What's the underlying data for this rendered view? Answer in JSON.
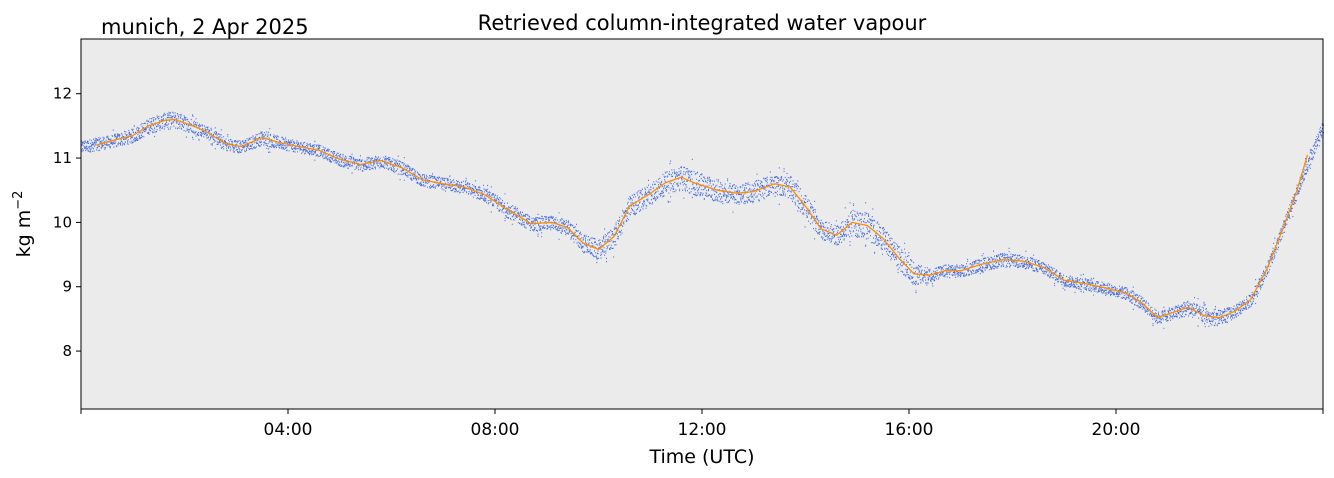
{
  "figure": {
    "location_date": "munich, 2 Apr 2025"
  },
  "chart_data": {
    "type": "scatter",
    "title": "Retrieved column-integrated water vapour",
    "xlabel": "Time (UTC)",
    "ylabel": "kg m",
    "ylabel_superscript": "−2",
    "xlim_hours": [
      0,
      24
    ],
    "ylim": [
      7.1,
      12.85
    ],
    "x_ticks": [
      "04:00",
      "08:00",
      "12:00",
      "16:00",
      "20:00"
    ],
    "x_tick_hours": [
      4,
      8,
      12,
      16,
      20
    ],
    "y_ticks": [
      8,
      9,
      10,
      11,
      12
    ],
    "grid": false,
    "background_color": "#ebebeb",
    "series": [
      {
        "style": "dense-scatter",
        "color": "#4169e1",
        "x_hours": [
          0.0,
          0.5,
          1.0,
          1.3,
          1.6,
          1.8,
          2.1,
          2.4,
          2.8,
          3.1,
          3.5,
          3.8,
          4.2,
          4.6,
          5.0,
          5.4,
          5.8,
          6.2,
          6.6,
          7.0,
          7.4,
          7.8,
          8.2,
          8.7,
          9.1,
          9.4,
          9.7,
          10.0,
          10.3,
          10.6,
          11.0,
          11.3,
          11.6,
          11.9,
          12.3,
          12.7,
          13.0,
          13.4,
          13.7,
          14.0,
          14.3,
          14.6,
          14.9,
          15.2,
          15.5,
          15.8,
          16.1,
          16.4,
          16.7,
          17.0,
          17.4,
          17.8,
          18.2,
          18.6,
          19.0,
          19.4,
          19.8,
          20.2,
          20.5,
          20.8,
          21.1,
          21.4,
          21.7,
          22.0,
          22.3,
          22.6,
          22.9,
          23.2,
          23.5,
          23.8,
          24.0
        ],
        "y_values": [
          11.18,
          11.25,
          11.35,
          11.5,
          11.58,
          11.6,
          11.52,
          11.42,
          11.22,
          11.18,
          11.32,
          11.25,
          11.18,
          11.12,
          10.98,
          10.9,
          10.96,
          10.85,
          10.66,
          10.6,
          10.55,
          10.43,
          10.22,
          9.98,
          10.0,
          9.92,
          9.68,
          9.58,
          9.78,
          10.25,
          10.45,
          10.62,
          10.7,
          10.6,
          10.5,
          10.45,
          10.48,
          10.6,
          10.55,
          10.25,
          9.9,
          9.8,
          10.0,
          9.95,
          9.75,
          9.45,
          9.2,
          9.18,
          9.25,
          9.25,
          9.35,
          9.42,
          9.4,
          9.3,
          9.1,
          9.05,
          8.98,
          8.9,
          8.75,
          8.52,
          8.6,
          8.68,
          8.55,
          8.52,
          8.62,
          8.8,
          9.25,
          9.85,
          10.5,
          11.1,
          11.5
        ],
        "spread": [
          0.2,
          0.2,
          0.22,
          0.25,
          0.25,
          0.28,
          0.22,
          0.2,
          0.2,
          0.2,
          0.22,
          0.2,
          0.18,
          0.18,
          0.2,
          0.2,
          0.2,
          0.2,
          0.2,
          0.2,
          0.2,
          0.2,
          0.25,
          0.22,
          0.22,
          0.25,
          0.3,
          0.3,
          0.35,
          0.35,
          0.35,
          0.35,
          0.38,
          0.38,
          0.35,
          0.3,
          0.35,
          0.3,
          0.35,
          0.38,
          0.3,
          0.3,
          0.4,
          0.45,
          0.35,
          0.38,
          0.35,
          0.22,
          0.2,
          0.2,
          0.2,
          0.22,
          0.2,
          0.2,
          0.18,
          0.18,
          0.18,
          0.2,
          0.2,
          0.2,
          0.2,
          0.25,
          0.25,
          0.25,
          0.2,
          0.2,
          0.2,
          0.22,
          0.22,
          0.2,
          0.2
        ]
      },
      {
        "style": "line",
        "color": "#ff8c00",
        "x_hours": [
          0.3,
          0.5,
          1.0,
          1.3,
          1.6,
          1.8,
          2.1,
          2.4,
          2.8,
          3.1,
          3.5,
          3.8,
          4.2,
          4.6,
          5.0,
          5.4,
          5.8,
          6.2,
          6.6,
          7.0,
          7.4,
          7.8,
          8.2,
          8.7,
          9.1,
          9.4,
          9.7,
          10.0,
          10.3,
          10.6,
          11.0,
          11.3,
          11.6,
          11.9,
          12.3,
          12.7,
          13.0,
          13.4,
          13.7,
          14.0,
          14.3,
          14.6,
          14.9,
          15.2,
          15.5,
          15.8,
          16.1,
          16.4,
          16.7,
          17.0,
          17.4,
          17.8,
          18.2,
          18.6,
          19.0,
          19.4,
          19.8,
          20.2,
          20.5,
          20.8,
          21.1,
          21.4,
          21.7,
          22.0,
          22.3,
          22.6,
          22.9,
          23.2,
          23.5,
          23.7
        ],
        "y_values": [
          11.2,
          11.25,
          11.35,
          11.5,
          11.58,
          11.6,
          11.52,
          11.42,
          11.22,
          11.18,
          11.32,
          11.25,
          11.18,
          11.12,
          10.98,
          10.9,
          10.96,
          10.85,
          10.66,
          10.6,
          10.55,
          10.43,
          10.22,
          9.98,
          10.0,
          9.92,
          9.68,
          9.58,
          9.78,
          10.25,
          10.45,
          10.62,
          10.7,
          10.6,
          10.5,
          10.45,
          10.48,
          10.6,
          10.55,
          10.25,
          9.9,
          9.8,
          10.0,
          9.95,
          9.75,
          9.45,
          9.2,
          9.18,
          9.25,
          9.25,
          9.35,
          9.42,
          9.4,
          9.3,
          9.1,
          9.05,
          8.98,
          8.9,
          8.75,
          8.52,
          8.6,
          8.68,
          8.55,
          8.52,
          8.62,
          8.8,
          9.25,
          9.85,
          10.5,
          11.05
        ]
      }
    ]
  }
}
